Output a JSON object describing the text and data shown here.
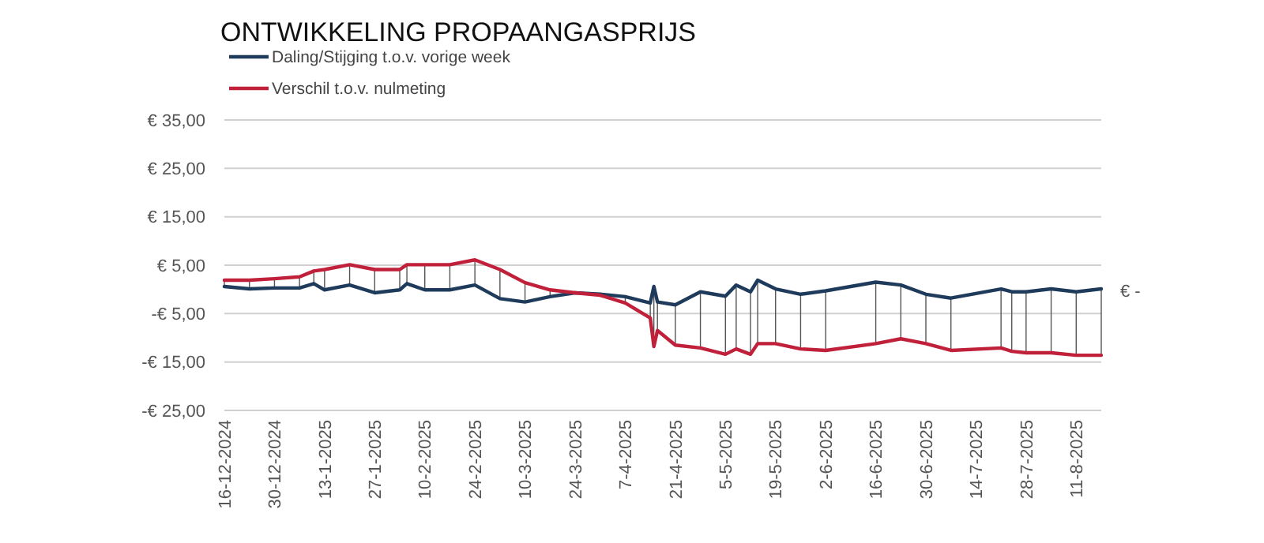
{
  "chart_data": {
    "type": "line",
    "title": "ONTWIKKELING PROPAANGASPRIJS",
    "x": [
      "2024-12-16",
      "2024-12-23",
      "2024-12-30",
      "2025-01-06",
      "2025-01-10",
      "2025-01-13",
      "2025-01-20",
      "2025-01-27",
      "2025-02-03",
      "2025-02-05",
      "2025-02-10",
      "2025-02-17",
      "2025-02-24",
      "2025-03-03",
      "2025-03-10",
      "2025-03-17",
      "2025-03-24",
      "2025-03-31",
      "2025-04-07",
      "2025-04-14",
      "2025-04-15",
      "2025-04-16",
      "2025-04-21",
      "2025-04-28",
      "2025-05-05",
      "2025-05-08",
      "2025-05-12",
      "2025-05-14",
      "2025-05-19",
      "2025-05-26",
      "2025-06-02",
      "2025-06-16",
      "2025-06-23",
      "2025-06-30",
      "2025-07-07",
      "2025-07-21",
      "2025-07-24",
      "2025-07-28",
      "2025-08-04",
      "2025-08-11",
      "2025-08-18"
    ],
    "series": [
      {
        "name": "Daling/Stijging t.o.v. vorige week",
        "color": "#1f3b5c",
        "values": [
          0.6,
          0.1,
          0.3,
          0.3,
          1.2,
          -0.1,
          0.9,
          -0.7,
          -0.1,
          1.2,
          -0.1,
          -0.1,
          0.9,
          -1.9,
          -2.6,
          -1.5,
          -0.7,
          -1.0,
          -1.5,
          -2.8,
          0.6,
          -2.6,
          -3.2,
          -0.5,
          -1.4,
          0.9,
          -0.5,
          1.9,
          0.1,
          -1.0,
          -0.3,
          1.5,
          0.9,
          -1.0,
          -1.8,
          0.1,
          -0.5,
          -0.5,
          0.1,
          -0.5,
          0.1
        ]
      },
      {
        "name": "Verschil t.o.v. nulmeting",
        "color": "#c0203a",
        "values": [
          1.9,
          1.9,
          2.2,
          2.6,
          3.8,
          4.1,
          5.1,
          4.1,
          4.1,
          5.1,
          5.1,
          5.1,
          6.1,
          4.1,
          1.4,
          -0.1,
          -0.7,
          -1.2,
          -2.8,
          -5.9,
          -11.8,
          -8.5,
          -11.5,
          -12.1,
          -13.4,
          -12.3,
          -13.4,
          -11.2,
          -11.2,
          -12.3,
          -12.6,
          -11.2,
          -10.2,
          -11.2,
          -12.6,
          -12.1,
          -12.8,
          -13.1,
          -13.1,
          -13.6,
          -13.6
        ]
      }
    ],
    "xlim": [
      "2024-12-16",
      "2025-08-18"
    ],
    "xticks": [
      {
        "value": "2024-12-16",
        "label": "16-12-2024"
      },
      {
        "value": "2024-12-30",
        "label": "30-12-2024"
      },
      {
        "value": "2025-01-13",
        "label": "13-1-2025"
      },
      {
        "value": "2025-01-27",
        "label": "27-1-2025"
      },
      {
        "value": "2025-02-10",
        "label": "10-2-2025"
      },
      {
        "value": "2025-02-24",
        "label": "24-2-2025"
      },
      {
        "value": "2025-03-10",
        "label": "10-3-2025"
      },
      {
        "value": "2025-03-24",
        "label": "24-3-2025"
      },
      {
        "value": "2025-04-07",
        "label": "7-4-2025"
      },
      {
        "value": "2025-04-21",
        "label": "21-4-2025"
      },
      {
        "value": "2025-05-05",
        "label": "5-5-2025"
      },
      {
        "value": "2025-05-19",
        "label": "19-5-2025"
      },
      {
        "value": "2025-06-02",
        "label": "2-6-2025"
      },
      {
        "value": "2025-06-16",
        "label": "16-6-2025"
      },
      {
        "value": "2025-06-30",
        "label": "30-6-2025"
      },
      {
        "value": "2025-07-14",
        "label": "14-7-2025"
      },
      {
        "value": "2025-07-28",
        "label": "28-7-2025"
      },
      {
        "value": "2025-08-11",
        "label": "11-8-2025"
      }
    ],
    "ylim": [
      -25,
      35
    ],
    "yticks": [
      {
        "value": 35,
        "label": "€ 35,00"
      },
      {
        "value": 25,
        "label": "€ 25,00"
      },
      {
        "value": 15,
        "label": "€ 15,00"
      },
      {
        "value": 5,
        "label": "€ 5,00"
      },
      {
        "value": -5,
        "label": "-€ 5,00"
      },
      {
        "value": -15,
        "label": "-€ 15,00"
      },
      {
        "value": -25,
        "label": "-€ 25,00"
      }
    ],
    "annotations": [
      "€ -"
    ],
    "grid": "y",
    "legend": "top left",
    "marker": "none",
    "line_style": "solid"
  }
}
